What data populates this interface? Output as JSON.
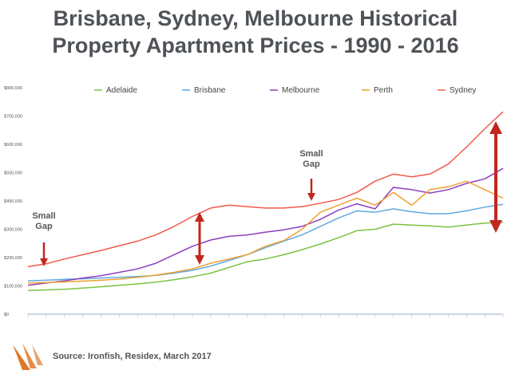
{
  "title_line1": "Brisbane, Sydney, Melbourne Historical",
  "title_line2": "Property Apartment Prices - 1990 - 2016",
  "source": "Source: Ironfish, Residex, March 2017",
  "annotations": [
    {
      "label_line1": "Small",
      "label_line2": "Gap",
      "at_year": 1990.5
    },
    {
      "label_line1": "Small",
      "label_line2": "Gap",
      "at_year": 2003.5
    }
  ],
  "colors": {
    "Adelaide": "#7cc242",
    "Brisbane": "#5fa9e0",
    "Melbourne": "#8a3fbe",
    "Perth": "#f0a030",
    "Sydney": "#f05a4a",
    "arrow": "#c0281e",
    "title": "#4f5358",
    "logo": "#e0782a"
  },
  "chart_data": {
    "type": "line",
    "title": "Brisbane, Sydney, Melbourne Historical Property Apartment Prices - 1990 - 2016",
    "xlabel": "",
    "ylabel": "",
    "xlim": [
      1990,
      2016
    ],
    "ylim": [
      0,
      800000
    ],
    "y_ticks": [
      "$0",
      "$100,000",
      "$200,000",
      "$300,000",
      "$400,000",
      "$500,000",
      "$600,000",
      "$700,000",
      "$800,000"
    ],
    "grid": false,
    "legend_position": "top",
    "x": [
      1990,
      1991,
      1992,
      1993,
      1994,
      1995,
      1996,
      1997,
      1998,
      1999,
      2000,
      2001,
      2002,
      2003,
      2004,
      2005,
      2006,
      2007,
      2008,
      2009,
      2010,
      2011,
      2012,
      2013,
      2014,
      2015,
      2016
    ],
    "series": [
      {
        "name": "Adelaide",
        "values": [
          84000,
          86000,
          88000,
          92000,
          97000,
          102000,
          107000,
          113000,
          122000,
          132000,
          145000,
          165000,
          185000,
          195000,
          210000,
          228000,
          248000,
          270000,
          295000,
          300000,
          318000,
          315000,
          312000,
          308000,
          315000,
          322000,
          325000
        ]
      },
      {
        "name": "Brisbane",
        "values": [
          118000,
          120000,
          123000,
          125000,
          128000,
          130000,
          133000,
          137000,
          145000,
          155000,
          170000,
          190000,
          210000,
          235000,
          258000,
          280000,
          310000,
          340000,
          365000,
          360000,
          372000,
          362000,
          355000,
          355000,
          365000,
          378000,
          388000
        ]
      },
      {
        "name": "Melbourne",
        "values": [
          102000,
          110000,
          118000,
          128000,
          136000,
          148000,
          160000,
          180000,
          210000,
          240000,
          262000,
          275000,
          280000,
          290000,
          298000,
          310000,
          335000,
          368000,
          390000,
          372000,
          448000,
          440000,
          428000,
          440000,
          462000,
          478000,
          515000
        ]
      },
      {
        "name": "Perth",
        "values": [
          110000,
          112000,
          114000,
          117000,
          120000,
          124000,
          130000,
          138000,
          148000,
          160000,
          180000,
          195000,
          210000,
          240000,
          260000,
          300000,
          360000,
          385000,
          410000,
          385000,
          430000,
          385000,
          440000,
          450000,
          470000,
          440000,
          410000
        ]
      },
      {
        "name": "Sydney",
        "values": [
          168000,
          178000,
          195000,
          210000,
          225000,
          242000,
          258000,
          280000,
          310000,
          345000,
          375000,
          385000,
          380000,
          375000,
          375000,
          380000,
          392000,
          405000,
          430000,
          470000,
          495000,
          485000,
          495000,
          530000,
          590000,
          655000,
          715000
        ]
      }
    ]
  }
}
